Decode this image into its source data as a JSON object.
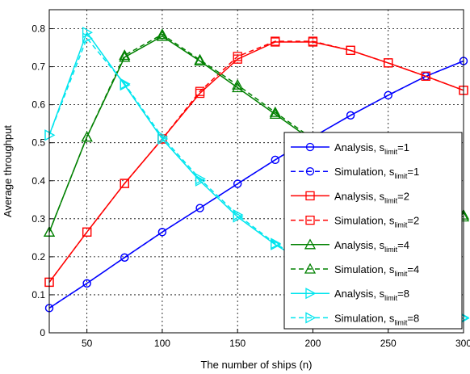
{
  "chart_data": {
    "type": "line",
    "title": "",
    "xlabel": "The number of ships (n)",
    "ylabel": "Average throughput",
    "xlim": [
      25,
      300
    ],
    "ylim": [
      0,
      0.85
    ],
    "x": [
      25,
      50,
      75,
      100,
      125,
      150,
      175,
      200,
      225,
      250,
      275,
      300
    ],
    "x_ticks": [
      50,
      100,
      150,
      200,
      250,
      300
    ],
    "x_tick_labels": [
      "50",
      "100",
      "150",
      "200",
      "250",
      "300"
    ],
    "y_ticks": [
      0,
      0.1,
      0.2,
      0.3,
      0.4,
      0.5,
      0.6,
      0.7,
      0.8
    ],
    "y_tick_labels": [
      "0",
      "0.1",
      "0.2",
      "0.3",
      "0.4",
      "0.5",
      "0.6",
      "0.7",
      "0.8"
    ],
    "grid": true,
    "legend_position": "bottom-right",
    "series": [
      {
        "name": "Analysis, slimit=1",
        "name_main": "Analysis, s",
        "name_sub": "limit",
        "name_tail": "=1",
        "color": "#0000ff",
        "dash": "solid",
        "marker": "circle",
        "values": [
          0.065,
          0.13,
          0.198,
          0.265,
          0.328,
          0.392,
          0.455,
          0.515,
          0.572,
          0.625,
          0.675,
          0.715
        ]
      },
      {
        "name": "Simulation, slimit=1",
        "name_main": "Simulation, s",
        "name_sub": "limit",
        "name_tail": "=1",
        "color": "#0000ff",
        "dash": "dashed",
        "marker": "circle",
        "values": [
          0.065,
          0.13,
          0.198,
          0.265,
          0.328,
          0.392,
          0.455,
          0.515,
          0.572,
          0.625,
          0.675,
          0.715
        ]
      },
      {
        "name": "Analysis, slimit=2",
        "name_main": "Analysis, s",
        "name_sub": "limit",
        "name_tail": "=2",
        "color": "#ff0000",
        "dash": "solid",
        "marker": "square",
        "values": [
          0.133,
          0.265,
          0.393,
          0.51,
          0.63,
          0.72,
          0.765,
          0.765,
          0.743,
          0.71,
          0.675,
          0.638
        ]
      },
      {
        "name": "Simulation, slimit=2",
        "name_main": "Simulation, s",
        "name_sub": "limit",
        "name_tail": "=2",
        "color": "#ff0000",
        "dash": "dashed",
        "marker": "square",
        "values": [
          0.133,
          0.265,
          0.393,
          0.51,
          0.635,
          0.727,
          0.767,
          0.767,
          0.743,
          0.71,
          0.675,
          0.638
        ]
      },
      {
        "name": "Analysis, slimit=4",
        "name_main": "Analysis, s",
        "name_sub": "limit",
        "name_tail": "=4",
        "color": "#008000",
        "dash": "solid",
        "marker": "triangle-up",
        "values": [
          0.265,
          0.515,
          0.725,
          0.78,
          0.715,
          0.645,
          0.575,
          0.505,
          0.44,
          0.385,
          0.34,
          0.305
        ]
      },
      {
        "name": "Simulation, slimit=4",
        "name_main": "Simulation, s",
        "name_sub": "limit",
        "name_tail": "=4",
        "color": "#008000",
        "dash": "dashed",
        "marker": "triangle-up",
        "values": [
          0.265,
          0.515,
          0.73,
          0.785,
          0.718,
          0.652,
          0.58,
          0.51,
          0.445,
          0.39,
          0.345,
          0.31
        ]
      },
      {
        "name": "Analysis, slimit=8",
        "name_main": "Analysis, s",
        "name_sub": "limit",
        "name_tail": "=8",
        "color": "#00e5ee",
        "dash": "solid",
        "marker": "triangle-right",
        "values": [
          0.52,
          0.79,
          0.652,
          0.51,
          0.4,
          0.305,
          0.232,
          0.172,
          0.125,
          0.088,
          0.06,
          0.038
        ]
      },
      {
        "name": "Simulation, slimit=8",
        "name_main": "Simulation, s",
        "name_sub": "limit",
        "name_tail": "=8",
        "color": "#00e5ee",
        "dash": "dashed",
        "marker": "triangle-right",
        "values": [
          0.52,
          0.775,
          0.655,
          0.515,
          0.405,
          0.31,
          0.235,
          0.175,
          0.128,
          0.09,
          0.062,
          0.04
        ]
      }
    ]
  }
}
